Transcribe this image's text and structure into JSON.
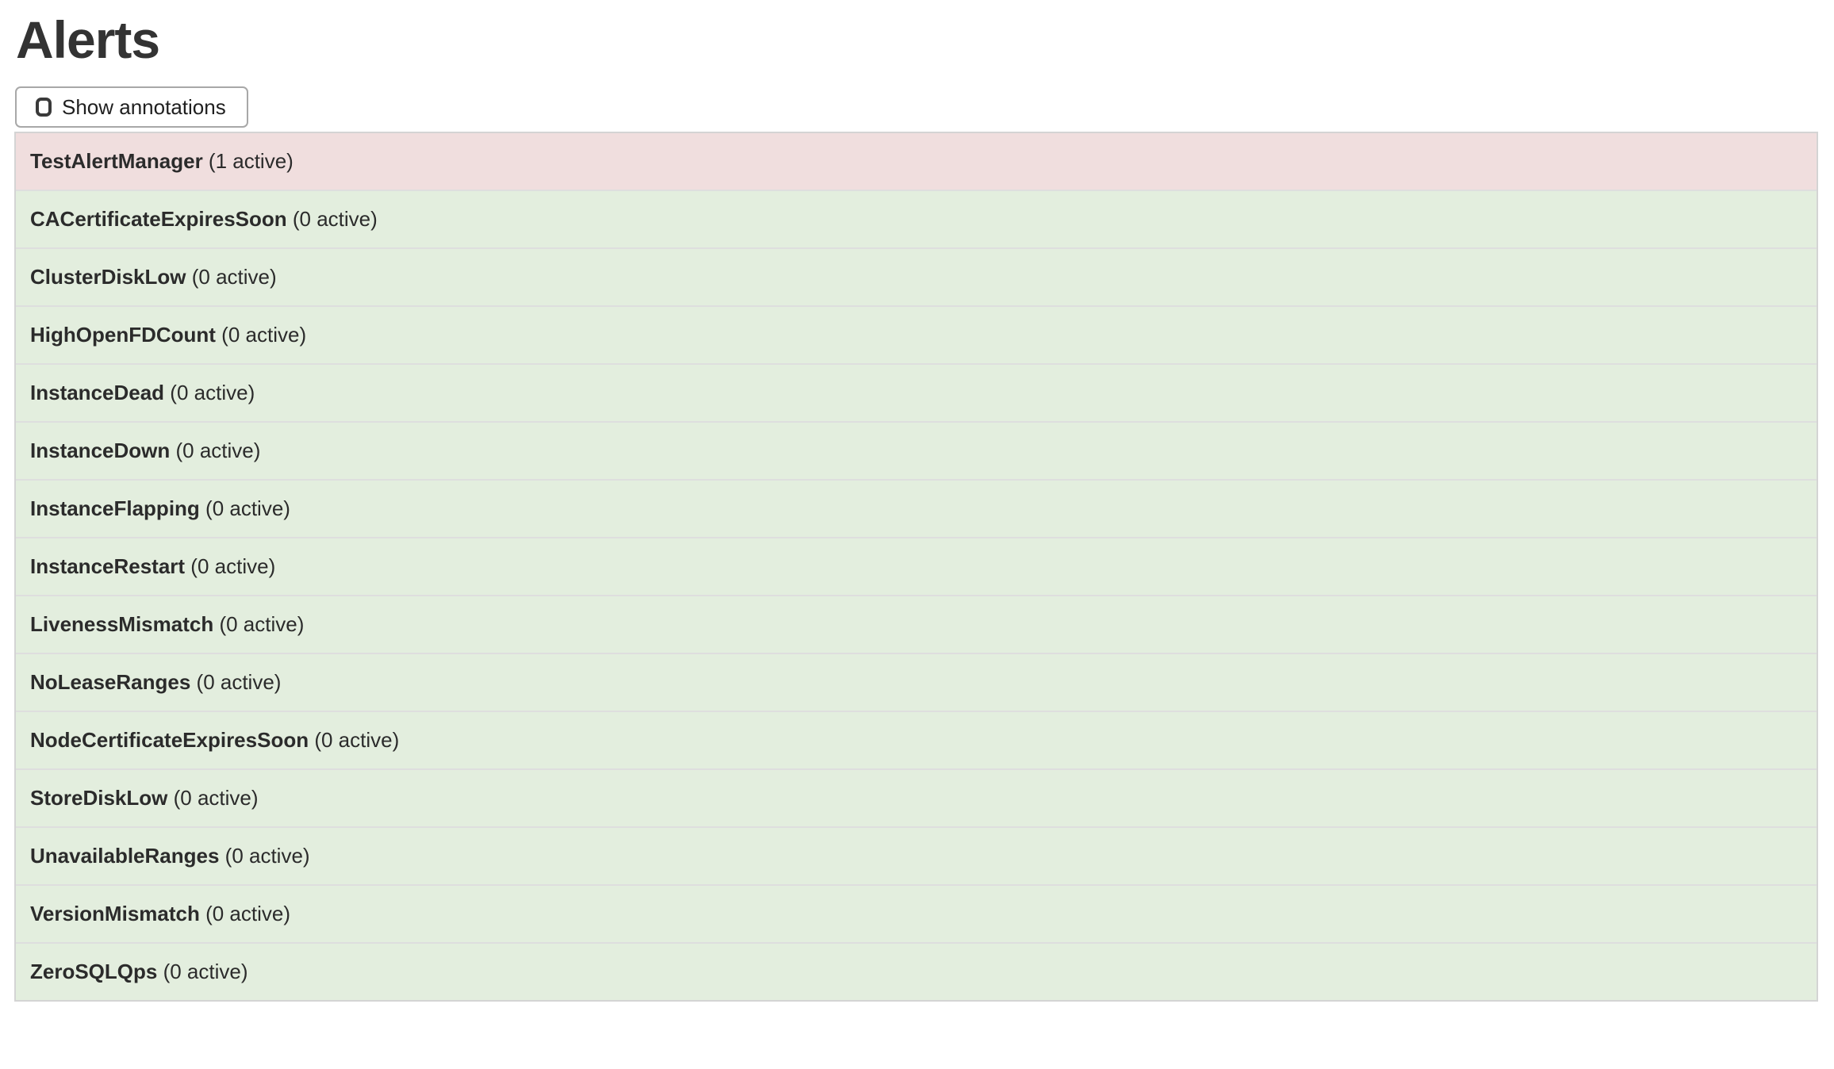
{
  "page": {
    "title": "Alerts"
  },
  "toolbar": {
    "show_annotations_label": "Show annotations",
    "checkbox_checked": false
  },
  "colors": {
    "firing_bg": "#f0dede",
    "inactive_bg": "#e3eede",
    "row_separator": "#dedede",
    "table_border": "#d4d4d4",
    "button_border": "#a8a8a8",
    "text": "#2e2e2e"
  },
  "alerts": [
    {
      "name": "TestAlertManager",
      "active_count": 1,
      "count_label": "(1 active)",
      "state": "firing"
    },
    {
      "name": "CACertificateExpiresSoon",
      "active_count": 0,
      "count_label": "(0 active)",
      "state": "inactive"
    },
    {
      "name": "ClusterDiskLow",
      "active_count": 0,
      "count_label": "(0 active)",
      "state": "inactive"
    },
    {
      "name": "HighOpenFDCount",
      "active_count": 0,
      "count_label": "(0 active)",
      "state": "inactive"
    },
    {
      "name": "InstanceDead",
      "active_count": 0,
      "count_label": "(0 active)",
      "state": "inactive"
    },
    {
      "name": "InstanceDown",
      "active_count": 0,
      "count_label": "(0 active)",
      "state": "inactive"
    },
    {
      "name": "InstanceFlapping",
      "active_count": 0,
      "count_label": "(0 active)",
      "state": "inactive"
    },
    {
      "name": "InstanceRestart",
      "active_count": 0,
      "count_label": "(0 active)",
      "state": "inactive"
    },
    {
      "name": "LivenessMismatch",
      "active_count": 0,
      "count_label": "(0 active)",
      "state": "inactive"
    },
    {
      "name": "NoLeaseRanges",
      "active_count": 0,
      "count_label": "(0 active)",
      "state": "inactive"
    },
    {
      "name": "NodeCertificateExpiresSoon",
      "active_count": 0,
      "count_label": "(0 active)",
      "state": "inactive"
    },
    {
      "name": "StoreDiskLow",
      "active_count": 0,
      "count_label": "(0 active)",
      "state": "inactive"
    },
    {
      "name": "UnavailableRanges",
      "active_count": 0,
      "count_label": "(0 active)",
      "state": "inactive"
    },
    {
      "name": "VersionMismatch",
      "active_count": 0,
      "count_label": "(0 active)",
      "state": "inactive"
    },
    {
      "name": "ZeroSQLQps",
      "active_count": 0,
      "count_label": "(0 active)",
      "state": "inactive"
    }
  ]
}
